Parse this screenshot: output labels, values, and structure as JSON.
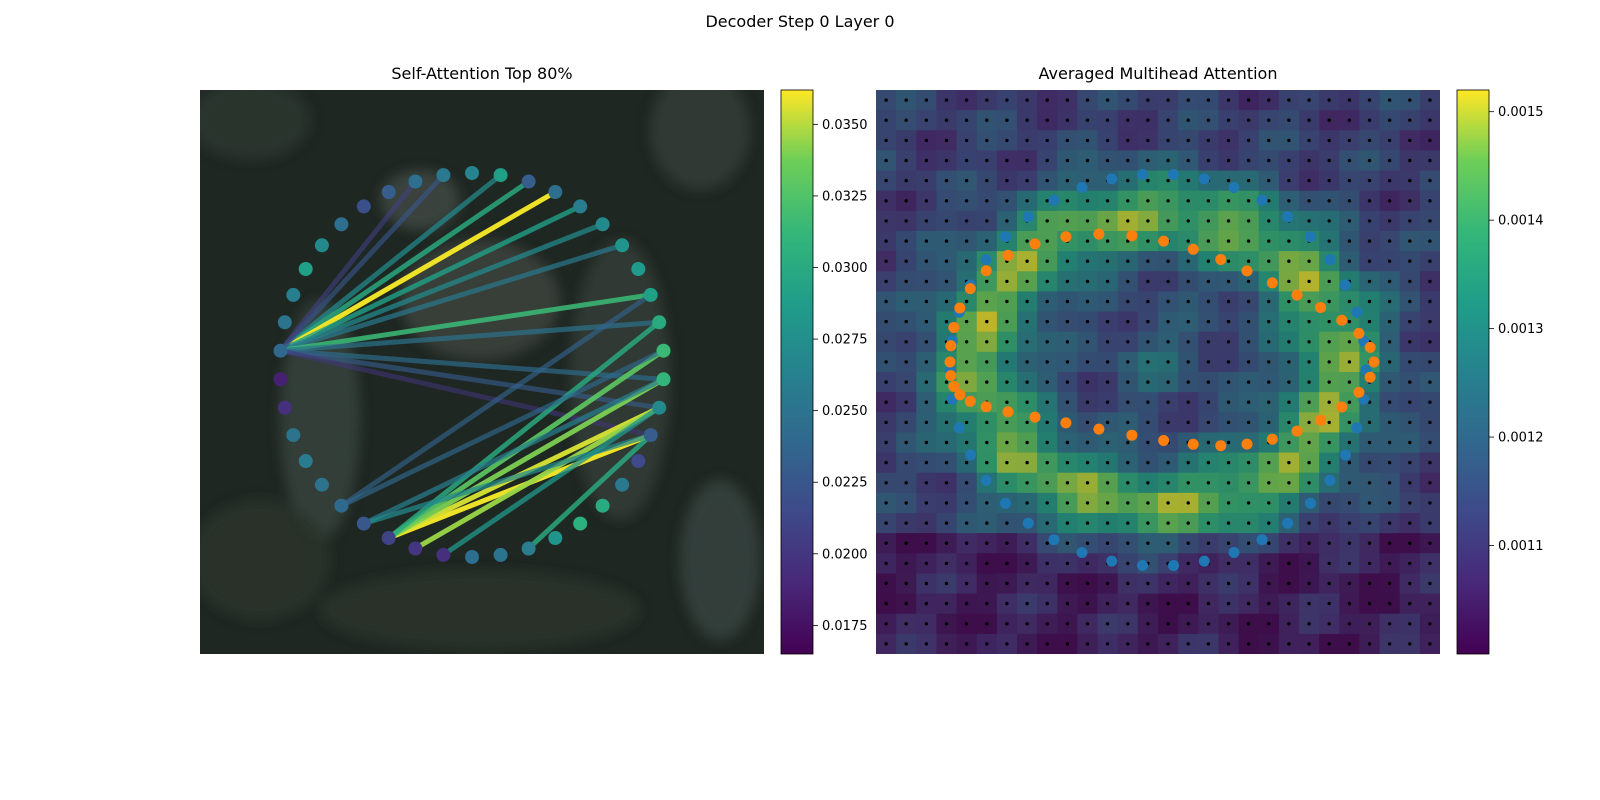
{
  "figure_title": "Decoder Step 0 Layer 0",
  "chart_data": [
    {
      "type": "scatter",
      "title": "Self-Attention Top 80%",
      "description_nodes": "Contour points on circle; colour = attention value",
      "node_values": [
        0.0265,
        0.0255,
        0.0245,
        0.023,
        0.022,
        0.0245,
        0.027,
        0.029,
        0.026,
        0.025,
        0.024,
        0.0185,
        0.0195,
        0.025,
        0.0258,
        0.025,
        0.024,
        0.0225,
        0.021,
        0.02,
        0.0195,
        0.0245,
        0.025,
        0.026,
        0.028,
        0.0305,
        0.03,
        0.0255,
        0.0215,
        0.023,
        0.027,
        0.031,
        0.0315,
        0.03,
        0.029,
        0.0285,
        0.028,
        0.027,
        0.026,
        0.0245,
        0.023,
        0.029
      ],
      "edges_from_node_10": [
        {
          "to": 1,
          "value": 0.027
        },
        {
          "to": 2,
          "value": 0.03
        },
        {
          "to": 3,
          "value": 0.036
        },
        {
          "to": 4,
          "value": 0.029
        },
        {
          "to": 5,
          "value": 0.027
        },
        {
          "to": 6,
          "value": 0.0255
        },
        {
          "to": 8,
          "value": 0.0315
        },
        {
          "to": 9,
          "value": 0.025
        },
        {
          "to": 11,
          "value": 0.0245
        },
        {
          "to": 12,
          "value": 0.023
        },
        {
          "to": 13,
          "value": 0.02
        },
        {
          "to": 41,
          "value": 0.0225
        },
        {
          "to": 40,
          "value": 0.021
        }
      ],
      "lower_edges": [
        {
          "from": 29,
          "to": 18,
          "value": 0.036
        },
        {
          "from": 30,
          "to": 18,
          "value": 0.0355
        },
        {
          "from": 31,
          "to": 18,
          "value": 0.034
        },
        {
          "from": 30,
          "to": 19,
          "value": 0.0345
        },
        {
          "from": 32,
          "to": 18,
          "value": 0.033
        },
        {
          "from": 33,
          "to": 18,
          "value": 0.03
        },
        {
          "from": 31,
          "to": 17,
          "value": 0.026
        },
        {
          "from": 32,
          "to": 16,
          "value": 0.024
        },
        {
          "from": 29,
          "to": 17,
          "value": 0.027
        },
        {
          "from": 34,
          "to": 16,
          "value": 0.0235
        },
        {
          "from": 29,
          "to": 23,
          "value": 0.03
        },
        {
          "from": 30,
          "to": 20,
          "value": 0.028
        }
      ],
      "colorbar": {
        "min": 0.0165,
        "max": 0.0362,
        "ticks": [
          "0.0175",
          "0.0200",
          "0.0225",
          "0.0250",
          "0.0275",
          "0.0300",
          "0.0325",
          "0.0350"
        ]
      }
    },
    {
      "type": "heatmap",
      "title": "Averaged Multihead Attention",
      "grid": "28 x 28 attention grid over image with contour points",
      "series": [
        {
          "color": "#1f77b4",
          "count": 42
        },
        {
          "color": "#ff7f0e",
          "count": 42
        }
      ],
      "colorbar": {
        "min": 0.001,
        "max": 0.00152,
        "ticks": [
          "0.0011",
          "0.0012",
          "0.0013",
          "0.0014",
          "0.0015"
        ]
      }
    }
  ],
  "colors": {
    "axis": "#000000"
  }
}
